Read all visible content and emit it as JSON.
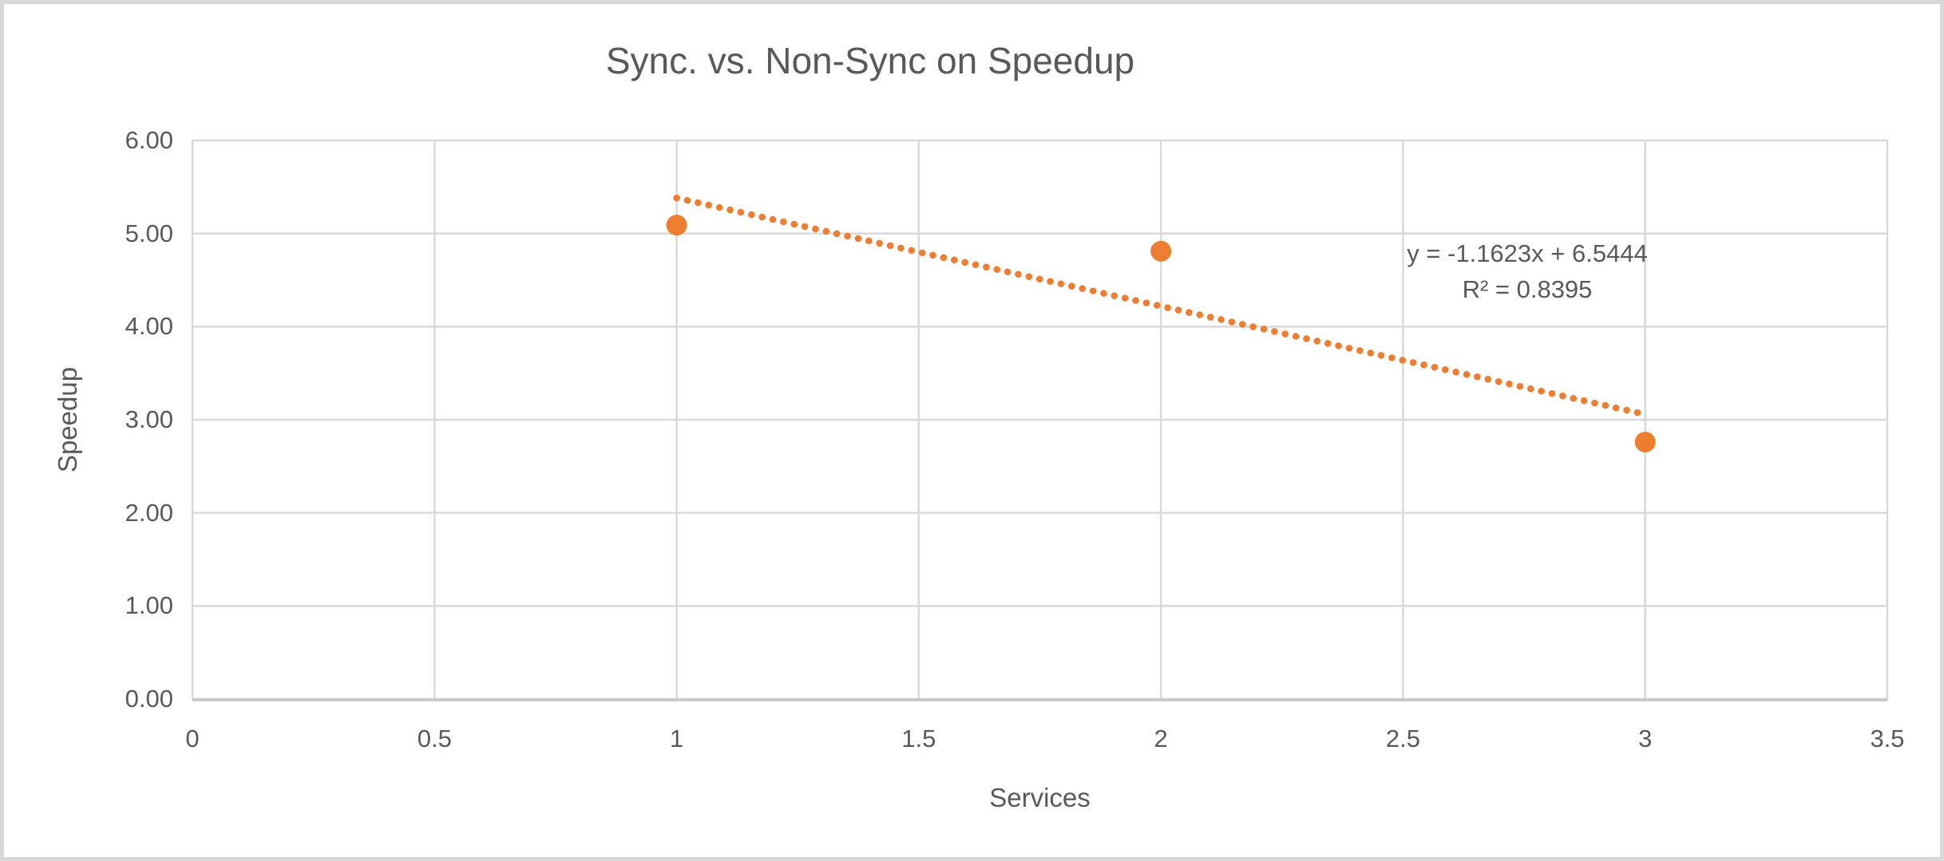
{
  "chart_data": {
    "type": "scatter",
    "title": "Sync. vs. Non-Sync on Speedup",
    "xlabel": "Services",
    "ylabel": "Speedup",
    "points": [
      {
        "x": 1,
        "y": 5.09
      },
      {
        "x": 2,
        "y": 4.81
      },
      {
        "x": 3,
        "y": 2.76
      }
    ],
    "xlim": [
      0,
      3.5
    ],
    "ylim": [
      0,
      6
    ],
    "x_ticks": [
      "0",
      "0.5",
      "1",
      "1.5",
      "2",
      "2.5",
      "3",
      "3.5"
    ],
    "y_ticks": [
      "0.00",
      "1.00",
      "2.00",
      "3.00",
      "4.00",
      "5.00",
      "6.00"
    ],
    "grid": true,
    "legend_position": "none",
    "trendline": {
      "kind": "linear",
      "slope": -1.1623,
      "intercept": 6.5444,
      "x_start": 1,
      "x_end": 3,
      "style": "dotted",
      "equation_label": "y = -1.1623x + 6.5444",
      "r2_label": "R² = 0.8395"
    },
    "colors": {
      "marker": "#ED7D31",
      "trendline": "#ED7D31",
      "text": "#595959",
      "gridline": "#D9D9D9",
      "axis_line": "#C9C9C9",
      "frame_border": "#D8D8D8",
      "background": "#FFFFFF"
    }
  }
}
